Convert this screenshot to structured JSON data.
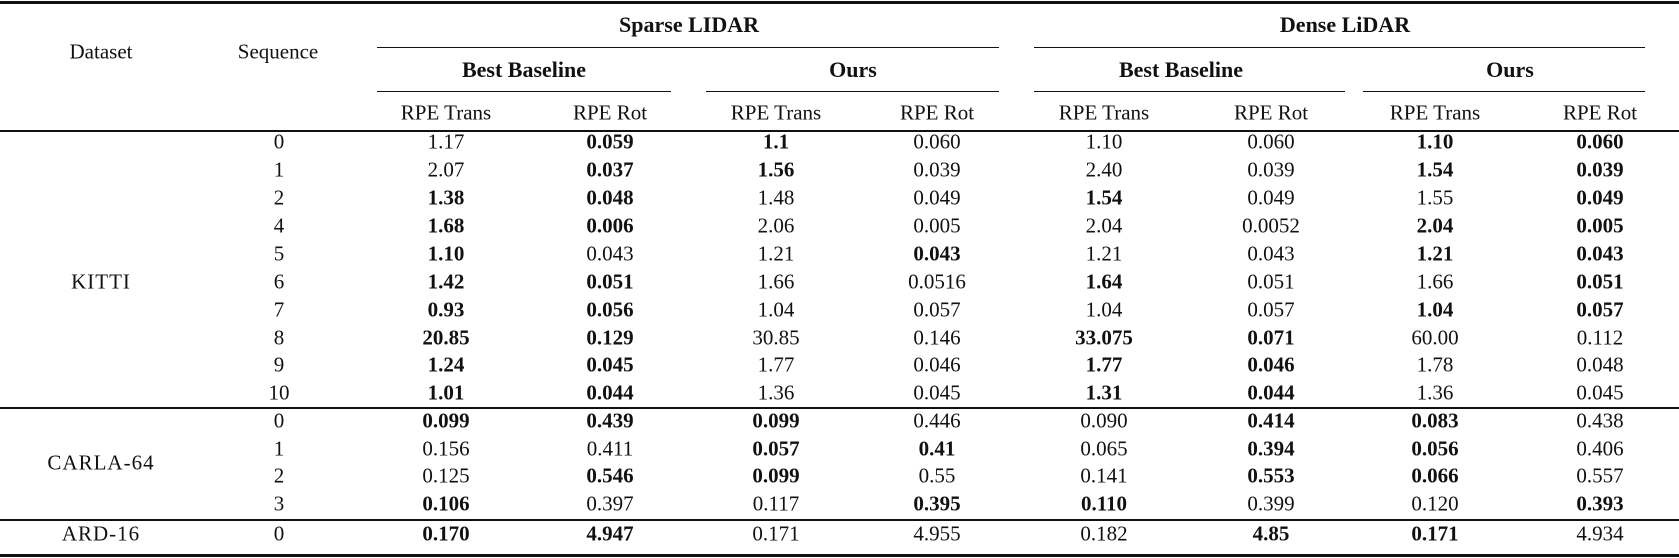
{
  "header": {
    "dataset": "Dataset",
    "sequence": "Sequence",
    "groups": [
      "Sparse LIDAR",
      "Dense LiDAR"
    ],
    "subgroups": [
      "Best Baseline",
      "Ours",
      "Best Baseline",
      "Ours"
    ],
    "columns": [
      "RPE Trans",
      "RPE Rot",
      "RPE Trans",
      "RPE Rot",
      "RPE Trans",
      "RPE Rot",
      "RPE Trans",
      "RPE Rot"
    ]
  },
  "datasets": [
    {
      "name": "KITTI",
      "rows": [
        {
          "seq": "0",
          "values": [
            "1.17",
            "0.059",
            "1.1",
            "0.060",
            "1.10",
            "0.060",
            "1.10",
            "0.060"
          ],
          "bold": [
            false,
            true,
            true,
            false,
            false,
            false,
            true,
            true
          ]
        },
        {
          "seq": "1",
          "values": [
            "2.07",
            "0.037",
            "1.56",
            "0.039",
            "2.40",
            "0.039",
            "1.54",
            "0.039"
          ],
          "bold": [
            false,
            true,
            true,
            false,
            false,
            false,
            true,
            true
          ]
        },
        {
          "seq": "2",
          "values": [
            "1.38",
            "0.048",
            "1.48",
            "0.049",
            "1.54",
            "0.049",
            "1.55",
            "0.049"
          ],
          "bold": [
            true,
            true,
            false,
            false,
            true,
            false,
            false,
            true
          ]
        },
        {
          "seq": "4",
          "values": [
            "1.68",
            "0.006",
            "2.06",
            "0.005",
            "2.04",
            "0.0052",
            "2.04",
            "0.005"
          ],
          "bold": [
            true,
            true,
            false,
            false,
            false,
            false,
            true,
            true
          ]
        },
        {
          "seq": "5",
          "values": [
            "1.10",
            "0.043",
            "1.21",
            "0.043",
            "1.21",
            "0.043",
            "1.21",
            "0.043"
          ],
          "bold": [
            true,
            false,
            false,
            true,
            false,
            false,
            true,
            true
          ]
        },
        {
          "seq": "6",
          "values": [
            "1.42",
            "0.051",
            "1.66",
            "0.0516",
            "1.64",
            "0.051",
            "1.66",
            "0.051"
          ],
          "bold": [
            true,
            true,
            false,
            false,
            true,
            false,
            false,
            true
          ]
        },
        {
          "seq": "7",
          "values": [
            "0.93",
            "0.056",
            "1.04",
            "0.057",
            "1.04",
            "0.057",
            "1.04",
            "0.057"
          ],
          "bold": [
            true,
            true,
            false,
            false,
            false,
            false,
            true,
            true
          ]
        },
        {
          "seq": "8",
          "values": [
            "20.85",
            "0.129",
            "30.85",
            "0.146",
            "33.075",
            "0.071",
            "60.00",
            "0.112"
          ],
          "bold": [
            true,
            true,
            false,
            false,
            true,
            true,
            false,
            false
          ]
        },
        {
          "seq": "9",
          "values": [
            "1.24",
            "0.045",
            "1.77",
            "0.046",
            "1.77",
            "0.046",
            "1.78",
            "0.048"
          ],
          "bold": [
            true,
            true,
            false,
            false,
            true,
            true,
            false,
            false
          ]
        },
        {
          "seq": "10",
          "values": [
            "1.01",
            "0.044",
            "1.36",
            "0.045",
            "1.31",
            "0.044",
            "1.36",
            "0.045"
          ],
          "bold": [
            true,
            true,
            false,
            false,
            true,
            true,
            false,
            false
          ]
        }
      ]
    },
    {
      "name": "CARLA-64",
      "rows": [
        {
          "seq": "0",
          "values": [
            "0.099",
            "0.439",
            "0.099",
            "0.446",
            "0.090",
            "0.414",
            "0.083",
            "0.438"
          ],
          "bold": [
            true,
            true,
            true,
            false,
            false,
            true,
            true,
            false
          ]
        },
        {
          "seq": "1",
          "values": [
            "0.156",
            "0.411",
            "0.057",
            "0.41",
            "0.065",
            "0.394",
            "0.056",
            "0.406"
          ],
          "bold": [
            false,
            false,
            true,
            true,
            false,
            true,
            true,
            false
          ]
        },
        {
          "seq": "2",
          "values": [
            "0.125",
            "0.546",
            "0.099",
            "0.55",
            "0.141",
            "0.553",
            "0.066",
            "0.557"
          ],
          "bold": [
            false,
            true,
            true,
            false,
            false,
            true,
            true,
            false
          ]
        },
        {
          "seq": "3",
          "values": [
            "0.106",
            "0.397",
            "0.117",
            "0.395",
            "0.110",
            "0.399",
            "0.120",
            "0.393"
          ],
          "bold": [
            true,
            false,
            false,
            true,
            true,
            false,
            false,
            true
          ]
        }
      ]
    },
    {
      "name": "ARD-16",
      "rows": [
        {
          "seq": "0",
          "values": [
            "0.170",
            "4.947",
            "0.171",
            "4.955",
            "0.182",
            "4.85",
            "0.171",
            "4.934"
          ],
          "bold": [
            true,
            true,
            false,
            false,
            false,
            true,
            true,
            false
          ]
        }
      ]
    }
  ]
}
